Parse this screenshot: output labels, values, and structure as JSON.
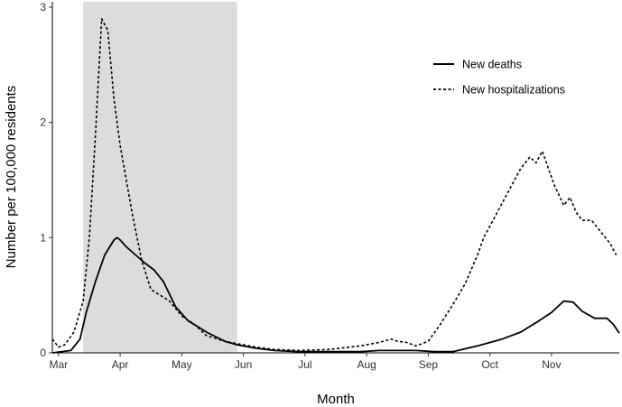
{
  "chart_data": {
    "type": "line",
    "title": "",
    "xlabel": "Month",
    "ylabel": "Number per 100,000 residents",
    "x_tick_labels": [
      "Mar",
      "Apr",
      "May",
      "Jun",
      "Jul",
      "Aug",
      "Sep",
      "Oct",
      "Nov"
    ],
    "y_tick_labels": [
      "0",
      "1",
      "2",
      "3"
    ],
    "x_unit": "months since Mar 1",
    "xlim": [
      0,
      9.2
    ],
    "ylim": [
      0,
      3
    ],
    "shaded_period": [
      0.5,
      3.0
    ],
    "legend_position": "top-right",
    "series": [
      {
        "name": "New deaths",
        "style": "solid",
        "x": [
          0.0,
          0.3,
          0.45,
          0.55,
          0.7,
          0.85,
          1.0,
          1.05,
          1.1,
          1.2,
          1.35,
          1.5,
          1.65,
          1.8,
          2.0,
          2.2,
          2.5,
          2.8,
          3.0,
          3.3,
          3.6,
          4.0,
          4.5,
          5.0,
          5.3,
          5.6,
          5.9,
          6.2,
          6.5,
          6.9,
          7.3,
          7.6,
          7.9,
          8.1,
          8.2,
          8.3,
          8.45,
          8.6,
          8.8,
          9.0,
          9.1,
          9.2
        ],
        "y": [
          0.0,
          0.02,
          0.12,
          0.35,
          0.62,
          0.85,
          0.98,
          1.0,
          0.98,
          0.92,
          0.85,
          0.78,
          0.72,
          0.62,
          0.4,
          0.28,
          0.18,
          0.1,
          0.07,
          0.04,
          0.02,
          0.01,
          0.01,
          0.01,
          0.02,
          0.02,
          0.02,
          0.01,
          0.01,
          0.06,
          0.12,
          0.18,
          0.28,
          0.35,
          0.4,
          0.45,
          0.44,
          0.36,
          0.3,
          0.3,
          0.25,
          0.17
        ]
      },
      {
        "name": "New hospitalizations",
        "style": "dashed",
        "x": [
          0.0,
          0.1,
          0.2,
          0.35,
          0.5,
          0.6,
          0.7,
          0.8,
          0.9,
          1.0,
          1.1,
          1.2,
          1.3,
          1.45,
          1.6,
          1.75,
          1.9,
          2.1,
          2.3,
          2.5,
          2.8,
          3.0,
          3.3,
          3.6,
          4.0,
          4.5,
          5.0,
          5.3,
          5.5,
          5.6,
          5.75,
          5.9,
          6.1,
          6.3,
          6.5,
          6.7,
          6.9,
          7.0,
          7.2,
          7.4,
          7.6,
          7.75,
          7.85,
          7.95,
          8.05,
          8.15,
          8.3,
          8.4,
          8.5,
          8.6,
          8.75,
          8.9,
          9.05,
          9.15
        ],
        "y": [
          0.12,
          0.05,
          0.07,
          0.18,
          0.45,
          1.0,
          1.9,
          2.9,
          2.8,
          2.2,
          1.8,
          1.5,
          1.2,
          0.8,
          0.55,
          0.5,
          0.45,
          0.32,
          0.25,
          0.15,
          0.1,
          0.08,
          0.05,
          0.03,
          0.02,
          0.03,
          0.06,
          0.09,
          0.12,
          0.1,
          0.09,
          0.06,
          0.1,
          0.25,
          0.42,
          0.6,
          0.85,
          1.0,
          1.2,
          1.4,
          1.6,
          1.7,
          1.65,
          1.75,
          1.6,
          1.45,
          1.28,
          1.35,
          1.22,
          1.15,
          1.15,
          1.05,
          0.95,
          0.85
        ]
      }
    ]
  }
}
